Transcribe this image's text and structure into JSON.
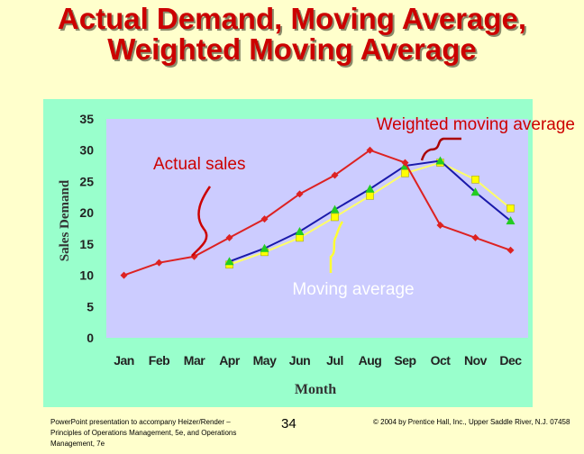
{
  "slide": {
    "title_line1": "Actual Demand, Moving Average,",
    "title_line2": "Weighted Moving Average",
    "footer_left": "PowerPoint presentation to accompany Heizer/Render – Principles of Operations Management, 5e, and Operations Management, 7e",
    "page_number": "34",
    "footer_right": "© 2004 by Prentice Hall, Inc., Upper Saddle River, N.J. 07458"
  },
  "chart_data": {
    "type": "line",
    "xlabel": "Month",
    "ylabel": "Sales Demand",
    "ylim": [
      0,
      35
    ],
    "yticks": [
      0,
      5,
      10,
      15,
      20,
      25,
      30,
      35
    ],
    "categories": [
      "Jan",
      "Feb",
      "Mar",
      "Apr",
      "May",
      "Jun",
      "Jul",
      "Aug",
      "Sep",
      "Oct",
      "Nov",
      "Dec"
    ],
    "grid": false,
    "series": [
      {
        "name": "Actual sales",
        "color": "#dd2222",
        "marker": "diamond",
        "marker_color": "#dd2222",
        "values": [
          10,
          12,
          13,
          16,
          19,
          23,
          26,
          30,
          28,
          18,
          16,
          14
        ]
      },
      {
        "name": "Moving average",
        "color": "#ffff66",
        "marker": "square",
        "marker_color": "#ffff00",
        "values": [
          null,
          null,
          null,
          11.7,
          13.7,
          16,
          19.3,
          22.7,
          26.3,
          28,
          25.3,
          20.7
        ]
      },
      {
        "name": "Weighted moving average",
        "color": "#1a1aaa",
        "marker": "triangle",
        "marker_color": "#22cc22",
        "values": [
          null,
          null,
          null,
          12.2,
          14.3,
          17,
          20.5,
          23.8,
          27.5,
          28.3,
          23.3,
          18.7
        ]
      }
    ],
    "annotations": [
      {
        "text": "Actual sales",
        "color": "#cc0000"
      },
      {
        "text": "Weighted moving average",
        "color": "#cc0000"
      },
      {
        "text": "Moving average",
        "color": "#ffffff"
      }
    ],
    "plot_background": "#ccccff",
    "frame_background": "#99ffcc"
  }
}
